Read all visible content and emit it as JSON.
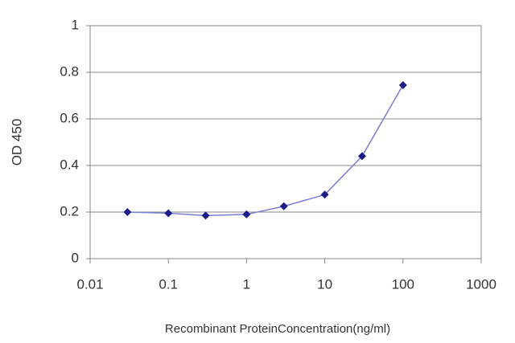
{
  "chart_data": {
    "type": "line",
    "x_label": "Recombinant ProteinConcentration(ng/ml)",
    "y_label": "OD 450",
    "x": [
      0.03,
      0.1,
      0.3,
      1,
      3,
      10,
      30,
      100
    ],
    "values": [
      0.2,
      0.195,
      0.185,
      0.19,
      0.225,
      0.275,
      0.44,
      0.745
    ],
    "line_color": "#7b7bd8",
    "marker_color": "#1c1c8a",
    "x_scale": "log",
    "xlim": [
      0.01,
      1000
    ],
    "xticks": [
      0.01,
      0.1,
      1,
      10,
      100,
      1000
    ],
    "ylim": [
      0,
      1
    ],
    "yticks": [
      0,
      0.2,
      0.4,
      0.6,
      0.8,
      1
    ],
    "grid": true
  }
}
